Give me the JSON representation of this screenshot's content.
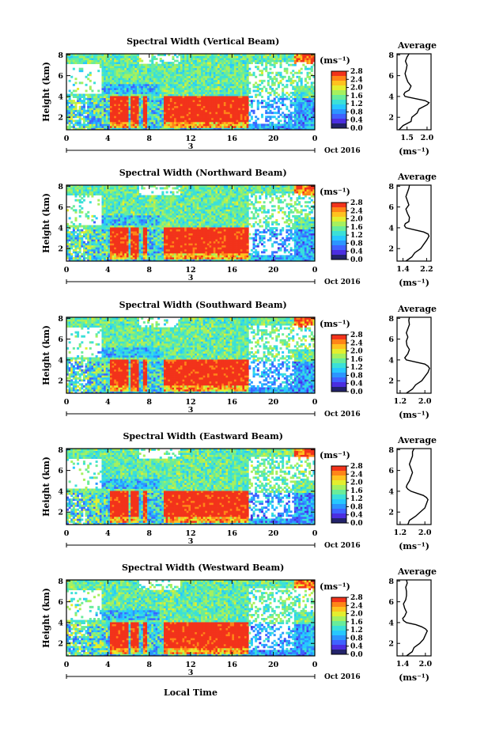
{
  "figure": {
    "xaxis_label": "Local Time",
    "date_label": "Oct 2016",
    "day_label": "3",
    "colorbar_unit": "(ms⁻¹)",
    "colorbar_ticks": [
      "0.0",
      "0.4",
      "0.8",
      "1.2",
      "1.6",
      "2.0",
      "2.4",
      "2.8"
    ],
    "avg_title": "Average",
    "avg_unit": "(ms⁻¹)",
    "colormap": [
      "#23236b",
      "#4b2ee0",
      "#3f62ff",
      "#2c95ff",
      "#27c8ff",
      "#3be0d8",
      "#69ec9a",
      "#a6f05e",
      "#e4ee2e",
      "#ffc21f",
      "#ff8518",
      "#f2331b"
    ]
  },
  "chart_data": [
    {
      "type": "heatmap",
      "title": "Spectral Width (Vertical Beam)",
      "ylabel": "Height (km)",
      "xlabel": "Local Time",
      "x_ticks": [
        "0",
        "4",
        "8",
        "12",
        "16",
        "20",
        "0"
      ],
      "y_ticks": [
        "2",
        "4",
        "6",
        "8"
      ],
      "xlim": [
        0,
        24
      ],
      "ylim": [
        0.8,
        8.1
      ],
      "clim": [
        0.0,
        2.8
      ],
      "average": {
        "title": "Average",
        "xlabel": "(ms⁻¹)",
        "x_ticks": [
          "1.5",
          "2.0"
        ],
        "xlim": [
          1.25,
          2.1
        ],
        "y_ticks": [
          "2",
          "4",
          "6",
          "8"
        ],
        "ylim": [
          0.8,
          8.1
        ],
        "height": [
          0.8,
          1.2,
          1.6,
          2.0,
          2.4,
          2.8,
          3.2,
          3.4,
          3.6,
          3.8,
          4.0,
          4.2,
          4.4,
          4.6,
          5.0,
          5.4,
          5.8,
          6.2,
          6.6,
          7.0,
          7.4,
          7.8,
          8.1
        ],
        "width": [
          1.3,
          1.4,
          1.6,
          1.62,
          1.75,
          1.8,
          2.0,
          2.05,
          1.95,
          1.7,
          1.45,
          1.42,
          1.45,
          1.55,
          1.6,
          1.52,
          1.48,
          1.45,
          1.48,
          1.5,
          1.46,
          1.5,
          1.55
        ]
      }
    },
    {
      "type": "heatmap",
      "title": "Spectral Width (Northward Beam)",
      "ylabel": "Height (km)",
      "xlabel": "Local Time",
      "x_ticks": [
        "0",
        "4",
        "8",
        "12",
        "16",
        "20",
        "0"
      ],
      "y_ticks": [
        "2",
        "4",
        "6",
        "8"
      ],
      "xlim": [
        0,
        24
      ],
      "ylim": [
        0.8,
        8.1
      ],
      "clim": [
        0.0,
        2.8
      ],
      "average": {
        "title": "Average",
        "xlabel": "(ms⁻¹)",
        "x_ticks": [
          "1.4",
          "2.2"
        ],
        "xlim": [
          1.2,
          2.35
        ],
        "y_ticks": [
          "2",
          "4",
          "6",
          "8"
        ],
        "ylim": [
          0.8,
          8.1
        ],
        "height": [
          0.8,
          1.2,
          1.6,
          2.0,
          2.4,
          2.8,
          3.2,
          3.4,
          3.6,
          3.8,
          4.0,
          4.2,
          4.4,
          4.6,
          5.0,
          5.4,
          5.8,
          6.2,
          6.6,
          7.0,
          7.4,
          7.8,
          8.1
        ],
        "width": [
          1.5,
          1.7,
          1.8,
          2.0,
          2.1,
          2.2,
          2.28,
          2.25,
          2.1,
          1.8,
          1.5,
          1.45,
          1.48,
          1.6,
          1.62,
          1.55,
          1.5,
          1.6,
          1.55,
          1.5,
          1.55,
          1.6,
          1.62
        ]
      }
    },
    {
      "type": "heatmap",
      "title": "Spectral Width (Southward Beam)",
      "ylabel": "Height (km)",
      "xlabel": "Local Time",
      "x_ticks": [
        "0",
        "4",
        "8",
        "12",
        "16",
        "20",
        "0"
      ],
      "y_ticks": [
        "2",
        "4",
        "6",
        "8"
      ],
      "xlim": [
        0,
        24
      ],
      "ylim": [
        0.8,
        8.1
      ],
      "clim": [
        0.0,
        2.8
      ],
      "average": {
        "title": "Average",
        "xlabel": "(ms⁻¹)",
        "x_ticks": [
          "1.2",
          "2.0"
        ],
        "xlim": [
          1.1,
          2.2
        ],
        "y_ticks": [
          "2",
          "4",
          "6",
          "8"
        ],
        "ylim": [
          0.8,
          8.1
        ],
        "height": [
          0.8,
          1.2,
          1.6,
          2.0,
          2.4,
          2.8,
          3.2,
          3.4,
          3.6,
          3.8,
          4.0,
          4.2,
          4.4,
          4.6,
          5.0,
          5.4,
          5.8,
          6.2,
          6.6,
          7.0,
          7.4,
          7.8,
          8.1
        ],
        "width": [
          1.4,
          1.6,
          1.7,
          1.9,
          2.0,
          2.1,
          2.15,
          2.1,
          2.0,
          1.7,
          1.4,
          1.35,
          1.4,
          1.45,
          1.5,
          1.42,
          1.4,
          1.45,
          1.4,
          1.45,
          1.5,
          1.48,
          1.5
        ]
      }
    },
    {
      "type": "heatmap",
      "title": "Spectral Width (Eastward Beam)",
      "ylabel": "Height (km)",
      "xlabel": "Local Time",
      "x_ticks": [
        "0",
        "4",
        "8",
        "12",
        "16",
        "20",
        "0"
      ],
      "y_ticks": [
        "2",
        "4",
        "6",
        "8"
      ],
      "xlim": [
        0,
        24
      ],
      "ylim": [
        0.8,
        8.1
      ],
      "clim": [
        0.0,
        2.8
      ],
      "average": {
        "title": "Average",
        "xlabel": "(ms⁻¹)",
        "x_ticks": [
          "1.2",
          "2.0"
        ],
        "xlim": [
          1.1,
          2.2
        ],
        "y_ticks": [
          "2",
          "4",
          "6",
          "8"
        ],
        "ylim": [
          0.8,
          8.1
        ],
        "height": [
          0.8,
          1.2,
          1.6,
          2.0,
          2.4,
          2.8,
          3.2,
          3.4,
          3.6,
          3.8,
          4.0,
          4.2,
          4.4,
          4.6,
          5.0,
          5.4,
          5.8,
          6.2,
          6.6,
          7.0,
          7.4,
          7.8,
          8.1
        ],
        "width": [
          1.45,
          1.5,
          1.7,
          1.85,
          2.0,
          2.05,
          2.1,
          2.05,
          1.95,
          1.75,
          1.55,
          1.45,
          1.4,
          1.42,
          1.5,
          1.55,
          1.6,
          1.55,
          1.5,
          1.55,
          1.6,
          1.6,
          1.65
        ]
      }
    },
    {
      "type": "heatmap",
      "title": "Spectral Width (Westward Beam)",
      "ylabel": "Height (km)",
      "xlabel": "Local Time",
      "x_ticks": [
        "0",
        "4",
        "8",
        "12",
        "16",
        "20",
        "0"
      ],
      "y_ticks": [
        "2",
        "4",
        "6",
        "8"
      ],
      "xlim": [
        0,
        24
      ],
      "ylim": [
        0.8,
        8.1
      ],
      "clim": [
        0.0,
        2.8
      ],
      "average": {
        "title": "Average",
        "xlabel": "(ms⁻¹)",
        "x_ticks": [
          "1.4",
          "2.0"
        ],
        "xlim": [
          1.25,
          2.15
        ],
        "y_ticks": [
          "2",
          "4",
          "6",
          "8"
        ],
        "ylim": [
          0.8,
          8.1
        ],
        "height": [
          0.8,
          1.2,
          1.6,
          2.0,
          2.4,
          2.8,
          3.2,
          3.4,
          3.6,
          3.8,
          4.0,
          4.2,
          4.4,
          4.6,
          5.0,
          5.4,
          5.8,
          6.2,
          6.6,
          7.0,
          7.4,
          7.8,
          8.1
        ],
        "width": [
          1.5,
          1.65,
          1.7,
          1.85,
          1.95,
          2.0,
          2.05,
          2.0,
          1.9,
          1.75,
          1.5,
          1.42,
          1.4,
          1.45,
          1.5,
          1.45,
          1.42,
          1.48,
          1.5,
          1.5,
          1.48,
          1.52,
          1.5
        ]
      }
    }
  ]
}
